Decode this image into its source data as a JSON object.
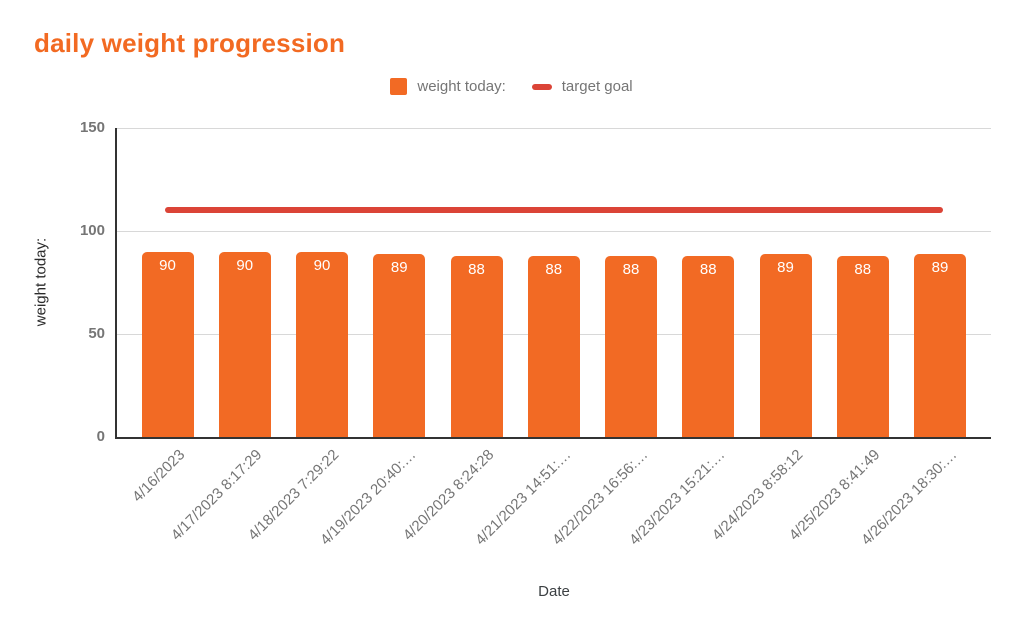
{
  "chart_data": {
    "type": "bar",
    "title": "daily weight progression",
    "xlabel": "Date",
    "ylabel": "weight today:",
    "ylim": [
      0,
      150
    ],
    "yticks": [
      0,
      50,
      100,
      150
    ],
    "grid": true,
    "legend_position": "top-center",
    "bar_labels_shown": true,
    "categories": [
      "4/16/2023",
      "4/17/2023 8:17:29",
      "4/18/2023 7:29:22",
      "4/19/2023 20:40:…",
      "4/20/2023 8:24:28",
      "4/21/2023 14:51:…",
      "4/22/2023 16:56:…",
      "4/23/2023 15:21:…",
      "4/24/2023 8:58:12",
      "4/25/2023 8:41:49",
      "4/26/2023 18:30:…"
    ],
    "series": [
      {
        "name": "weight today:",
        "type": "bar",
        "color": "#F26A24",
        "values": [
          90,
          90,
          90,
          89,
          88,
          88,
          88,
          88,
          89,
          88,
          89
        ]
      },
      {
        "name": "target goal",
        "type": "line",
        "color": "#DB4437",
        "value": 110
      }
    ]
  },
  "colors": {
    "title_orange": "#F26A22",
    "bar_orange": "#F26A24",
    "target_red": "#DB4437",
    "tick_gray": "#757575",
    "axis_dark": "#333333",
    "grid_gray": "#D8D8D8",
    "bar_label_white": "#FFFFFF",
    "x_title_dark": "#3C4043",
    "y_title_dark": "#2B2B2B"
  }
}
